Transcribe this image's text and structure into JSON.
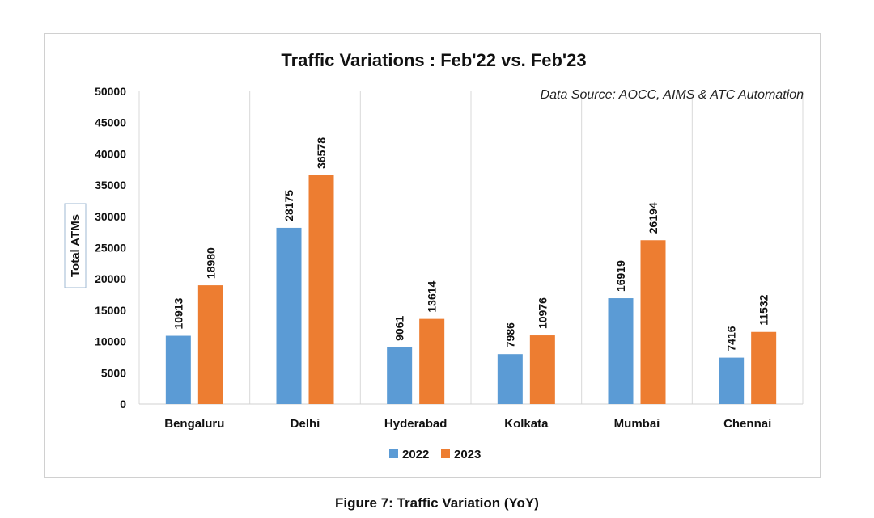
{
  "chart_data": {
    "type": "bar",
    "title": "Traffic Variations : Feb'22 vs. Feb'23",
    "annotation": "Data Source: AOCC, AIMS & ATC Automation",
    "ylabel": "Total ATMs",
    "xlabel": "",
    "ylim": [
      0,
      50000
    ],
    "yticks": [
      "0",
      "5000",
      "10000",
      "15000",
      "20000",
      "25000",
      "30000",
      "35000",
      "40000",
      "45000",
      "50000"
    ],
    "categories": [
      "Bengaluru",
      "Delhi",
      "Hyderabad",
      "Kolkata",
      "Mumbai",
      "Chennai"
    ],
    "series": [
      {
        "name": "2022",
        "color": "#5B9BD5",
        "values": [
          10913,
          28175,
          9061,
          7986,
          16919,
          7416
        ]
      },
      {
        "name": "2023",
        "color": "#ED7D31",
        "values": [
          18980,
          36578,
          13614,
          10976,
          26194,
          11532
        ]
      }
    ],
    "legend_position": "bottom",
    "grid": "vertical category separators"
  },
  "caption": "Figure 7: Traffic Variation (YoY)"
}
